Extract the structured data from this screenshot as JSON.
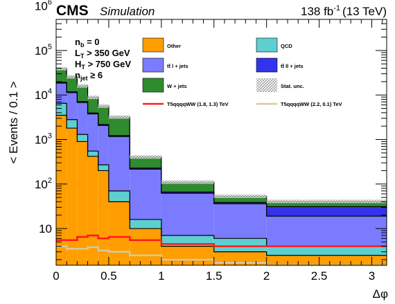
{
  "header": {
    "experiment": "CMS",
    "tag": "Simulation",
    "lumi": "138 fb",
    "lumi_exp": "-1",
    "energy": "(13 TeV)"
  },
  "selection": [
    {
      "main": "n",
      "sub": "b",
      "rest": " = 0"
    },
    {
      "main": "L",
      "sub": "T",
      "rest": " > 350 GeV"
    },
    {
      "main": "H",
      "sub": "T",
      "rest": " > 750 GeV"
    },
    {
      "main": "n",
      "sub": "jet",
      "rest": " ≥ 6"
    }
  ],
  "colors": {
    "Other": "#ff9e00",
    "QCD": "#5ecfcf",
    "ttbar_1l": "#7b7bff",
    "ttbar_2l": "#3333ee",
    "W_jets": "#2e8b2e",
    "T5_1": "#ff1a1a",
    "T5_2": "#d6c9a0"
  },
  "chart_data": {
    "type": "bar",
    "stacked": true,
    "x_label": "Δφ",
    "y_label": "< Events / 0.1 >",
    "x_range": [
      0,
      3.14159
    ],
    "y_range": [
      1.5,
      500000
    ],
    "y_scale": "log",
    "x_ticks": [
      "0",
      "0.5",
      "1",
      "1.5",
      "2",
      "2.5",
      "3"
    ],
    "y_ticks": [
      {
        "value": 10,
        "base": "10",
        "exp": ""
      },
      {
        "value": 100,
        "base": "10",
        "exp": "2"
      },
      {
        "value": 1000,
        "base": "10",
        "exp": "3"
      },
      {
        "value": 10000,
        "base": "10",
        "exp": "4"
      },
      {
        "value": 100000,
        "base": "10",
        "exp": "5"
      },
      {
        "value": 1000000,
        "base": "10",
        "exp": "6"
      }
    ],
    "bin_edges": [
      0,
      0.1,
      0.2,
      0.3,
      0.4,
      0.5,
      0.7,
      1.0,
      1.5,
      2.0,
      3.14159
    ],
    "stack_series": [
      {
        "key": "Other",
        "name": "Other",
        "color": "#ff9e00",
        "values": [
          3500,
          1800,
          900,
          420,
          200,
          40,
          10,
          4,
          3,
          2.5
        ]
      },
      {
        "key": "QCD",
        "name": "QCD",
        "color": "#5ecfcf",
        "values": [
          3000,
          1000,
          400,
          130,
          70,
          30,
          6,
          3,
          3,
          1.5
        ]
      },
      {
        "key": "ttbar_1l",
        "name": "tt̄ l + jets",
        "color": "#7b7bff",
        "values": [
          12000,
          8500,
          5500,
          3200,
          1800,
          1100,
          200,
          55,
          30,
          15
        ]
      },
      {
        "key": "ttbar_2l",
        "name": "tt̄ ll + jets",
        "color": "#3333ee",
        "values": [
          800,
          500,
          320,
          180,
          100,
          55,
          12,
          4,
          2.5,
          12
        ]
      },
      {
        "key": "W_jets",
        "name": "W + jets",
        "color": "#2e8b2e",
        "values": [
          20000,
          14000,
          9000,
          5000,
          3500,
          2000,
          180,
          45,
          15,
          10
        ]
      }
    ],
    "signals": [
      {
        "key": "T5_1",
        "name": "T5qqqqWW (1.8, 1.3) TeV",
        "color": "#ff1a1a",
        "values": [
          5.5,
          5.5,
          6.5,
          7,
          6,
          6.5,
          5.5,
          4.5,
          4,
          4
        ]
      },
      {
        "key": "T5_2",
        "name": "T5qqqqWW (2.2, 0.1) TeV",
        "color": "#d6c9a0",
        "values": [
          4,
          3.5,
          3.5,
          3.8,
          3.2,
          3,
          2.5,
          2,
          1.7,
          1.5
        ]
      }
    ],
    "uncertainty_label": "Stat. unc.",
    "legend_position": "top, inside plot",
    "grid": false
  }
}
